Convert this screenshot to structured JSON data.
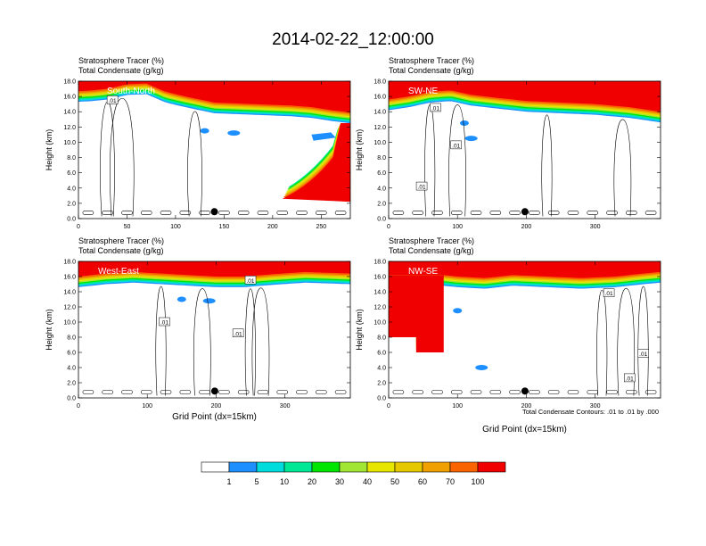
{
  "title": "2014-02-22_12:00:00",
  "colors": {
    "levels": [
      "#ffffff",
      "#1e8fff",
      "#00dcdc",
      "#00e895",
      "#00e600",
      "#a0e632",
      "#e6e600",
      "#e6c800",
      "#f0a000",
      "#fa6400",
      "#f00000"
    ]
  },
  "colorbar": {
    "tick_labels": [
      "1",
      "5",
      "10",
      "20",
      "30",
      "40",
      "50",
      "60",
      "70",
      "100"
    ]
  },
  "footnote": "Total Condensate Contours: .01 to .01 by .000",
  "chart_data": [
    {
      "type": "heatmap",
      "line1": "Stratosphere Tracer   (%)",
      "line2": "Total Condensate   (g/kg)",
      "panel_label": "South-North",
      "ylabel": "Height (km)",
      "xlabel": "",
      "xlim": [
        0,
        280
      ],
      "ylim": [
        0,
        18
      ],
      "xticks": [
        0,
        50,
        100,
        150,
        200,
        250
      ],
      "yticks": [
        "0.0",
        "2.0",
        "4.0",
        "6.0",
        "8.0",
        "10.0",
        "12.0",
        "14.0",
        "16.0",
        "18.0"
      ],
      "marker_x": 140,
      "contour_labels": [
        {
          "x": 35,
          "y": 15.5,
          "text": ".01"
        }
      ],
      "tropopause": [
        [
          0,
          15.3
        ],
        [
          15,
          15.4
        ],
        [
          30,
          15.6
        ],
        [
          50,
          16.2
        ],
        [
          70,
          16.3
        ],
        [
          90,
          15.2
        ],
        [
          110,
          14.6
        ],
        [
          140,
          13.8
        ],
        [
          180,
          13.6
        ],
        [
          220,
          13.4
        ],
        [
          240,
          13.2
        ],
        [
          260,
          12.8
        ],
        [
          280,
          12.5
        ]
      ],
      "dip": {
        "x0": 200,
        "x1": 280,
        "top": 12.5,
        "bottom": 2.6
      }
    },
    {
      "type": "heatmap",
      "line1": "Stratosphere Tracer   (%)",
      "line2": "Total Condensate   (g/kg)",
      "panel_label": "SW-NE",
      "ylabel": "Height (km)",
      "xlabel": "",
      "xlim": [
        0,
        395
      ],
      "ylim": [
        0,
        18
      ],
      "xticks": [
        0,
        100,
        200,
        300
      ],
      "yticks": [
        "0.0",
        "2.0",
        "4.0",
        "6.0",
        "8.0",
        "10.0",
        "12.0",
        "14.0",
        "16.0",
        "18.0"
      ],
      "marker_x": 198,
      "contour_labels": [
        {
          "x": 68,
          "y": 14.5,
          "text": ".01"
        },
        {
          "x": 98,
          "y": 9.6,
          "text": ".01"
        },
        {
          "x": 48,
          "y": 4.2,
          "text": ".01"
        }
      ],
      "tropopause": [
        [
          0,
          14.2
        ],
        [
          30,
          14.6
        ],
        [
          60,
          15.2
        ],
        [
          90,
          15.4
        ],
        [
          120,
          14.8
        ],
        [
          160,
          14.4
        ],
        [
          200,
          14.0
        ],
        [
          250,
          13.8
        ],
        [
          300,
          13.6
        ],
        [
          350,
          13.2
        ],
        [
          395,
          12.6
        ]
      ],
      "dip": null
    },
    {
      "type": "heatmap",
      "line1": "Stratosphere Tracer   (%)",
      "line2": "Total Condensate   (g/kg)",
      "panel_label": "West-East",
      "ylabel": "Height (km)",
      "xlabel": "Grid Point (dx=15km)",
      "xlim": [
        0,
        395
      ],
      "ylim": [
        0,
        18
      ],
      "xticks": [
        0,
        100,
        200,
        300
      ],
      "yticks": [
        "0.0",
        "2.0",
        "4.0",
        "6.0",
        "8.0",
        "10.0",
        "12.0",
        "14.0",
        "16.0",
        "18.0"
      ],
      "marker_x": 198,
      "contour_labels": [
        {
          "x": 250,
          "y": 15.5,
          "text": ".01"
        },
        {
          "x": 125,
          "y": 10.0,
          "text": ".01"
        },
        {
          "x": 232,
          "y": 8.5,
          "text": ".01"
        }
      ],
      "tropopause": [
        [
          0,
          14.6
        ],
        [
          40,
          15.0
        ],
        [
          80,
          15.2
        ],
        [
          120,
          15.0
        ],
        [
          160,
          14.8
        ],
        [
          200,
          14.6
        ],
        [
          240,
          14.6
        ],
        [
          280,
          14.9
        ],
        [
          330,
          15.2
        ],
        [
          395,
          15.0
        ]
      ],
      "dip": null
    },
    {
      "type": "heatmap",
      "line1": "",
      "line2": "",
      "panel_label": "NW-SE",
      "ylabel": "Height (km)",
      "xlabel": "Grid Point (dx=15km)",
      "xlim": [
        0,
        395
      ],
      "ylim": [
        0,
        18
      ],
      "xticks": [
        0,
        100,
        200,
        300
      ],
      "yticks": [
        "0.0",
        "2.0",
        "4.0",
        "6.0",
        "8.0",
        "10.0",
        "12.0",
        "14.0",
        "16.0",
        "18.0"
      ],
      "marker_x": 198,
      "contour_labels": [
        {
          "x": 320,
          "y": 13.8,
          "text": ".01"
        },
        {
          "x": 370,
          "y": 5.8,
          "text": ".01"
        },
        {
          "x": 350,
          "y": 2.6,
          "text": ".01"
        }
      ],
      "tropopause": [
        [
          0,
          14.6
        ],
        [
          80,
          14.8
        ],
        [
          100,
          14.6
        ],
        [
          140,
          14.4
        ],
        [
          180,
          14.8
        ],
        [
          230,
          14.6
        ],
        [
          280,
          14.4
        ],
        [
          330,
          14.6
        ],
        [
          370,
          15.0
        ],
        [
          395,
          15.2
        ]
      ],
      "dip": {
        "x0": 0,
        "x1": 80,
        "top": 16.2,
        "bottom": 6.0
      }
    }
  ]
}
